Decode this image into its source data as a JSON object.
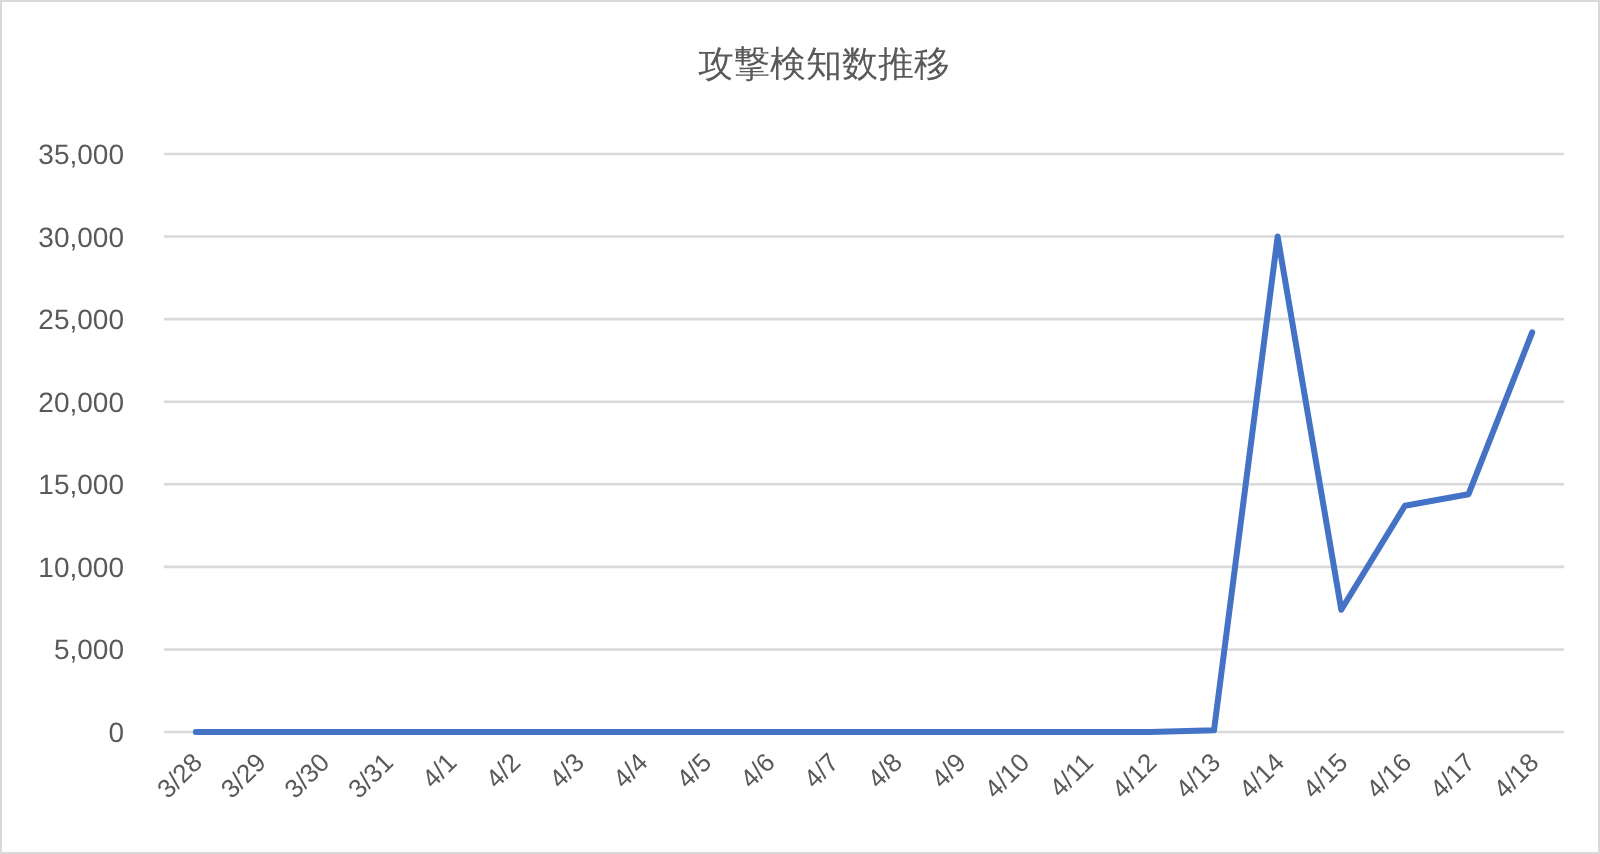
{
  "chart_data": {
    "type": "line",
    "title": "攻撃検知数推移",
    "categories": [
      "3/28",
      "3/29",
      "3/30",
      "3/31",
      "4/1",
      "4/2",
      "4/3",
      "4/4",
      "4/5",
      "4/6",
      "4/7",
      "4/8",
      "4/9",
      "4/10",
      "4/11",
      "4/12",
      "4/13",
      "4/14",
      "4/15",
      "4/16",
      "4/17",
      "4/18"
    ],
    "series": [
      {
        "color": "#4472c4",
        "values": [
          0,
          0,
          0,
          0,
          0,
          0,
          0,
          0,
          0,
          0,
          0,
          0,
          0,
          0,
          0,
          0,
          100,
          30000,
          7400,
          13700,
          14400,
          24200
        ]
      }
    ],
    "ylim": [
      0,
      35000
    ],
    "yticks": [
      {
        "value": 0,
        "label": "0"
      },
      {
        "value": 5000,
        "label": "5,000"
      },
      {
        "value": 10000,
        "label": "10,000"
      },
      {
        "value": 15000,
        "label": "15,000"
      },
      {
        "value": 20000,
        "label": "20,000"
      },
      {
        "value": 25000,
        "label": "25,000"
      },
      {
        "value": 30000,
        "label": "30,000"
      },
      {
        "value": 35000,
        "label": "35,000"
      }
    ],
    "grid": "y",
    "marker": "none",
    "line_style": "solid"
  }
}
